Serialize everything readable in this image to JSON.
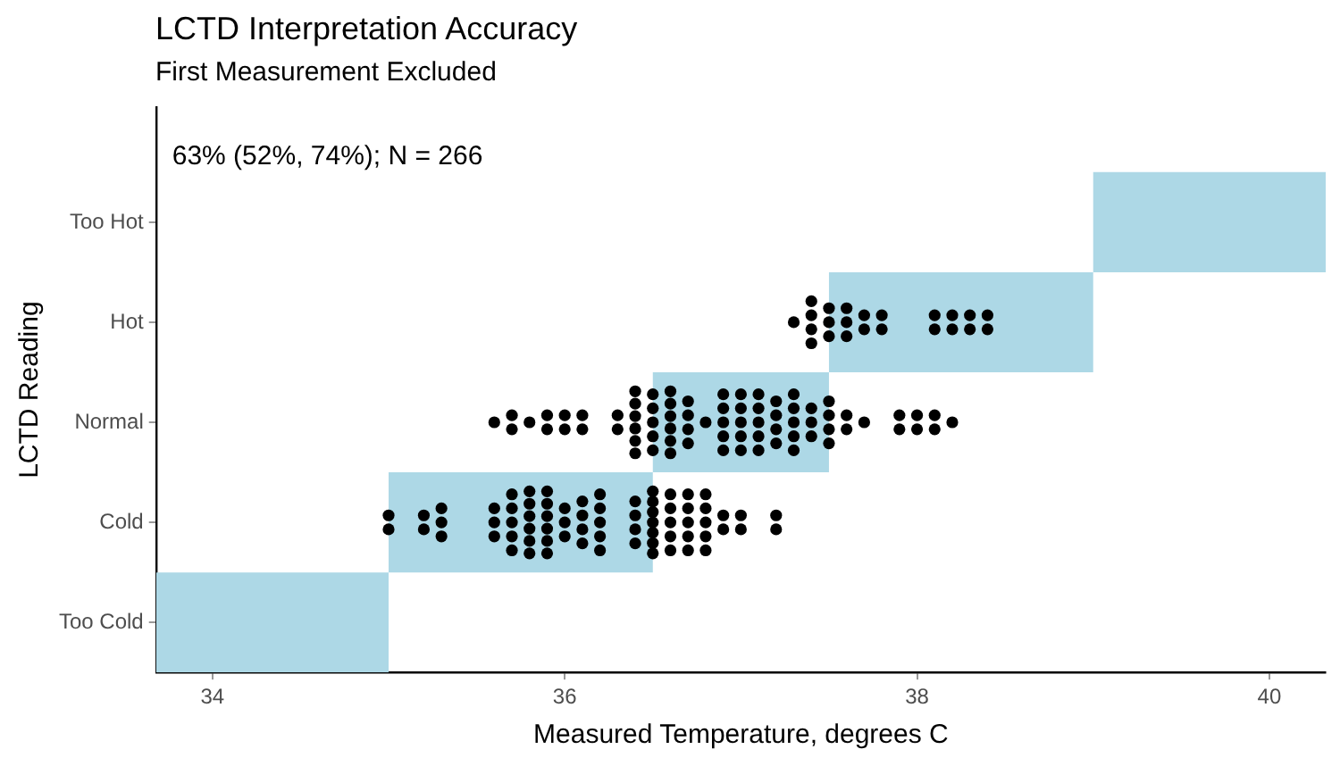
{
  "chart_data": {
    "type": "bar",
    "orientation": "horizontal",
    "title": "LCTD Interpretation Accuracy",
    "subtitle": "First Measurement Excluded",
    "xlabel": "Measured Temperature, degrees C",
    "ylabel": "LCTD Reading",
    "annotations": [
      "63% (52%, 74%); N = 266"
    ],
    "categories": [
      "Too Hot",
      "Hot",
      "Normal",
      "Cold",
      "Too Cold"
    ],
    "xlim": [
      33.68,
      40.32
    ],
    "xticks": [
      34,
      36,
      38,
      40
    ],
    "grid": false,
    "legend": false,
    "marker": "circle",
    "series": [
      {
        "color": "#add8e6",
        "base": [
          39,
          37.5,
          36.5,
          35,
          33.68
        ],
        "values": [
          1.32,
          1.5,
          1,
          1.5,
          1.32
        ]
      },
      {
        "type": "scatter",
        "color": "#000000",
        "x": [
          "Cold",
          "Cold",
          "Cold",
          "Cold",
          "Cold",
          "Cold",
          "Cold",
          "Cold",
          "Cold",
          "Cold",
          "Cold",
          "Cold",
          "Cold",
          "Cold",
          "Cold",
          "Cold",
          "Cold",
          "Cold",
          "Cold",
          "Cold",
          "Cold",
          "Cold",
          "Cold",
          "Cold",
          "Cold",
          "Cold",
          "Cold",
          "Cold",
          "Cold",
          "Cold",
          "Cold",
          "Cold",
          "Cold",
          "Cold",
          "Cold",
          "Cold",
          "Cold",
          "Cold",
          "Cold",
          "Cold",
          "Cold",
          "Cold",
          "Cold",
          "Cold",
          "Cold",
          "Cold",
          "Cold",
          "Cold",
          "Cold",
          "Cold",
          "Cold",
          "Cold",
          "Cold",
          "Cold",
          "Cold",
          "Cold",
          "Cold",
          "Cold",
          "Cold",
          "Cold",
          "Cold",
          "Cold",
          "Cold",
          "Cold",
          "Cold",
          "Cold",
          "Cold",
          "Cold",
          "Cold",
          "Cold",
          "Cold",
          "Normal",
          "Normal",
          "Normal",
          "Normal",
          "Normal",
          "Normal",
          "Normal",
          "Normal",
          "Normal",
          "Normal",
          "Normal",
          "Normal",
          "Normal",
          "Normal",
          "Normal",
          "Normal",
          "Normal",
          "Normal",
          "Normal",
          "Normal",
          "Normal",
          "Normal",
          "Normal",
          "Normal",
          "Normal",
          "Normal",
          "Normal",
          "Normal",
          "Normal",
          "Normal",
          "Normal",
          "Normal",
          "Normal",
          "Normal",
          "Normal",
          "Normal",
          "Normal",
          "Normal",
          "Normal",
          "Normal",
          "Normal",
          "Normal",
          "Normal",
          "Normal",
          "Normal",
          "Normal",
          "Normal",
          "Normal",
          "Normal",
          "Normal",
          "Normal",
          "Normal",
          "Normal",
          "Normal",
          "Normal",
          "Normal",
          "Normal",
          "Normal",
          "Normal",
          "Normal",
          "Normal",
          "Normal",
          "Normal",
          "Normal",
          "Normal",
          "Normal",
          "Normal",
          "Normal",
          "Normal",
          "Normal",
          "Normal",
          "Normal",
          "Normal",
          "Normal",
          "Normal",
          "Hot",
          "Hot",
          "Hot",
          "Hot",
          "Hot",
          "Hot",
          "Hot",
          "Hot",
          "Hot",
          "Hot",
          "Hot",
          "Hot",
          "Hot",
          "Hot",
          "Hot",
          "Hot",
          "Hot",
          "Hot",
          "Hot",
          "Hot",
          "Hot",
          "Hot",
          "Hot"
        ],
        "values": [
          35.0,
          35.0,
          35.2,
          35.2,
          35.3,
          35.3,
          35.3,
          35.6,
          35.6,
          35.6,
          35.7,
          35.7,
          35.7,
          35.7,
          35.7,
          35.8,
          35.8,
          35.8,
          35.8,
          35.8,
          35.8,
          35.9,
          35.9,
          35.9,
          35.9,
          35.9,
          35.9,
          36.0,
          36.0,
          36.0,
          36.1,
          36.1,
          36.1,
          36.1,
          36.2,
          36.2,
          36.2,
          36.2,
          36.2,
          36.4,
          36.4,
          36.4,
          36.4,
          36.5,
          36.5,
          36.5,
          36.5,
          36.5,
          36.5,
          36.5,
          36.6,
          36.6,
          36.6,
          36.6,
          36.6,
          36.7,
          36.7,
          36.7,
          36.7,
          36.7,
          36.8,
          36.8,
          36.8,
          36.8,
          36.8,
          36.9,
          36.9,
          37.0,
          37.0,
          37.2,
          37.2,
          35.6,
          35.7,
          35.7,
          35.8,
          35.9,
          35.9,
          36.0,
          36.0,
          36.1,
          36.1,
          36.3,
          36.3,
          36.4,
          36.4,
          36.4,
          36.4,
          36.4,
          36.4,
          36.5,
          36.5,
          36.5,
          36.5,
          36.5,
          36.6,
          36.6,
          36.6,
          36.6,
          36.6,
          36.6,
          36.7,
          36.7,
          36.7,
          36.7,
          36.8,
          36.9,
          36.9,
          36.9,
          36.9,
          36.9,
          37.0,
          37.0,
          37.0,
          37.0,
          37.0,
          37.1,
          37.1,
          37.1,
          37.1,
          37.1,
          37.2,
          37.2,
          37.2,
          37.2,
          37.3,
          37.3,
          37.3,
          37.3,
          37.3,
          37.4,
          37.4,
          37.4,
          37.5,
          37.5,
          37.5,
          37.5,
          37.6,
          37.6,
          37.7,
          37.9,
          37.9,
          38.0,
          38.0,
          38.1,
          38.1,
          38.2,
          37.3,
          37.4,
          37.4,
          37.4,
          37.4,
          37.5,
          37.5,
          37.5,
          37.6,
          37.6,
          37.6,
          37.7,
          37.7,
          37.8,
          37.8,
          38.1,
          38.1,
          38.2,
          38.2,
          38.3,
          38.3,
          38.4,
          38.4
        ]
      }
    ]
  }
}
